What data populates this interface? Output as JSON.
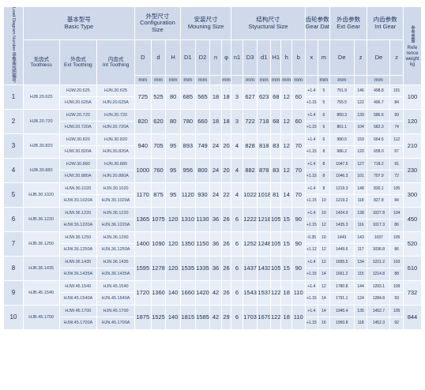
{
  "header": {
    "load_diagram": "Load Diagram Number 承载曲线图编号",
    "basic_type_cn": "基本型号",
    "basic_type_en": "Basic Type",
    "configuration_cn": "外型尺寸",
    "configuration_en": "Configuration Size",
    "mounting_cn": "安装尺寸",
    "mounting_en": "Mouning Size",
    "structural_cn": "结构尺寸",
    "structural_en": "Styuctural Size",
    "gear_data_cn": "齿轮参数",
    "gear_data_en": "Gear Data",
    "ext_gear_cn": "外齿参数",
    "ext_gear_en": "Ext Gear",
    "int_gear_cn": "内齿参数",
    "int_gear_en": "Int Gear",
    "weight_cn": "参考重量",
    "weight_en": "Refe rence weight kg",
    "no_tooth_cn": "无齿式",
    "no_tooth_en": "Toothless",
    "ext_tooth_cn": "外齿式",
    "ext_tooth_en": "Ext Toothing",
    "int_tooth_cn": "内齿式",
    "int_tooth_en": "Int Toothing",
    "cols": {
      "D": "D",
      "d": "d",
      "H": "H",
      "D1": "D1",
      "D2": "D2",
      "n": "n",
      "phi": "φ",
      "n1": "n1",
      "D3": "D3",
      "d1": "d1",
      "H1": "H1",
      "h": "h",
      "b": "b",
      "x": "x",
      "m": "m",
      "De": "De",
      "z": "z",
      "Di": "De",
      "zi": "z"
    },
    "unit": "mm"
  },
  "rows": [
    {
      "no": "1",
      "toothless": "HJB.20.625",
      "ext": [
        "HJW.20.625",
        "HJW.20.625A"
      ],
      "int": [
        "HJN.20.625",
        "HJN.20.625A"
      ],
      "D": "725",
      "d": "525",
      "H": "80",
      "D1": "685",
      "D2": "565",
      "n": "18",
      "phi": "18",
      "n1": "3",
      "D3": "627",
      "d1": "623",
      "H1": "68",
      "h": "12",
      "b": "60",
      "x": [
        "+1.4",
        "+1.15"
      ],
      "m": [
        "5",
        "5"
      ],
      "De": [
        "751.9",
        "755.5"
      ],
      "z": [
        "146",
        "122"
      ],
      "Di": [
        "498.8",
        "496.7"
      ],
      "zi": [
        "101",
        "84"
      ],
      "w": "100"
    },
    {
      "no": "2",
      "toothless": "HJB.20.720",
      "ext": [
        "HJW.20.720",
        "HJW.20.720A"
      ],
      "int": [
        "HJN.20.720",
        "HJN.20.720A"
      ],
      "D": "820",
      "d": "620",
      "H": "80",
      "D1": "780",
      "D2": "660",
      "n": "18",
      "phi": "18",
      "n1": "3",
      "D3": "722",
      "d1": "718",
      "H1": "68",
      "h": "12",
      "b": "60",
      "x": [
        "+1.4",
        "+1.15"
      ],
      "m": [
        "6",
        "6"
      ],
      "De": [
        "860.3",
        "861.1"
      ],
      "z": [
        "139",
        "104"
      ],
      "Di": [
        "586.6",
        "582.3"
      ],
      "zi": [
        "99",
        "74"
      ],
      "w": "120"
    },
    {
      "no": "3",
      "toothless": "HJB.30.820",
      "ext": [
        "HJW.30.820",
        "HJW.30.820A"
      ],
      "int": [
        "HJN.30.820",
        "HJN.30.820A"
      ],
      "D": "940",
      "d": "705",
      "H": "95",
      "D1": "893",
      "D2": "749",
      "n": "24",
      "phi": "20",
      "n1": "4",
      "D3": "828",
      "d1": "818",
      "H1": "83",
      "h": "12",
      "b": "70",
      "x": [
        "+1.4",
        "+1.15"
      ],
      "m": [
        "6",
        "8"
      ],
      "De": [
        "980.5",
        "986.2"
      ],
      "z": [
        "159",
        "120"
      ],
      "Di": [
        "664.5",
        "658.0"
      ],
      "zi": [
        "112",
        "67"
      ],
      "w": "210"
    },
    {
      "no": "4",
      "toothless": "HJB.30.880",
      "ext": [
        "HJW.30.880",
        "HJW.30.880A"
      ],
      "int": [
        "HJN.30.880",
        "HJN.30.880A"
      ],
      "D": "1000",
      "d": "760",
      "H": "95",
      "D1": "956",
      "D2": "800",
      "n": "24",
      "phi": "20",
      "n1": "4",
      "D3": "882",
      "d1": "878",
      "H1": "83",
      "h": "12",
      "b": "70",
      "x": [
        "+1.4",
        "+1.15"
      ],
      "m": [
        "8",
        "8"
      ],
      "De": [
        "1047.5",
        "1046.3"
      ],
      "z": [
        "127",
        "101"
      ],
      "Di": [
        "718.2",
        "707.9"
      ],
      "zi": [
        "91",
        "72"
      ],
      "w": "230"
    },
    {
      "no": "5",
      "toothless": "HJB.30.1020",
      "ext": [
        "HJW.30.1020",
        "HJW.30.1020A"
      ],
      "int": [
        "HJN.30.1020",
        "HJN.30.1020A"
      ],
      "D": "1170",
      "d": "875",
      "H": "95",
      "D1": "1120",
      "D2": "930",
      "n": "24",
      "phi": "22",
      "n1": "4",
      "D3": "1022",
      "d1": "1018",
      "H1": "81",
      "h": "14",
      "b": "70",
      "x": [
        "+1.4",
        "+1.15"
      ],
      "m": [
        "8",
        "10"
      ],
      "De": [
        "1219.3",
        "1219.2"
      ],
      "z": [
        "148",
        "118"
      ],
      "Di": [
        "830.1",
        "827.8"
      ],
      "zi": [
        "105",
        "84"
      ],
      "w": "300"
    },
    {
      "no": "6",
      "toothless": "HJB.36.1220",
      "ext": [
        "HJW.36.1220",
        "HJW.36.1220A"
      ],
      "int": [
        "HJN.36.1220",
        "HJN.36.1220A"
      ],
      "D": "1365",
      "d": "1075",
      "H": "120",
      "D1": "1310",
      "D2": "1130",
      "n": "36",
      "phi": "26",
      "n1": "6",
      "D3": "1222",
      "d1": "1218",
      "H1": "105",
      "h": "15",
      "b": "90",
      "x": [
        "+1.4",
        "+1.15"
      ],
      "m": [
        "10",
        "12"
      ],
      "De": [
        "1424.9",
        "1435.3"
      ],
      "z": [
        "138",
        "116"
      ],
      "Di": [
        "1027.8",
        "1017.3"
      ],
      "zi": [
        "104",
        "86"
      ],
      "w": "450"
    },
    {
      "no": "7",
      "toothless": "HJB.36.1250",
      "ext": [
        "HJW.36.1250",
        "HJW.36.1250A"
      ],
      "int": [
        "HJN.36.1250",
        "HJN.36.1250A"
      ],
      "D": "1400",
      "d": "1090",
      "H": "120",
      "D1": "1350",
      "D2": "1150",
      "n": "36",
      "phi": "26",
      "n1": "6",
      "D3": "1252",
      "d1": "1248",
      "H1": "105",
      "h": "15",
      "b": "90",
      "x": [
        "-0.35",
        "+1.12"
      ],
      "m": [
        "10",
        "12"
      ],
      "De": [
        "1443",
        "1449.6"
      ],
      "z": [
        "143",
        "117"
      ],
      "Di": [
        "1037",
        "1036.8"
      ],
      "zi": [
        "105",
        "86"
      ],
      "w": "520"
    },
    {
      "no": "8",
      "toothless": "HJB.36.1435",
      "ext": [
        "HJW.36.1435",
        "HJW.36.1435A"
      ],
      "int": [
        "HJN.36.1435",
        "HJN.36.1435A"
      ],
      "D": "1595",
      "d": "1278",
      "H": "120",
      "D1": "1535",
      "D2": "1335",
      "n": "36",
      "phi": "26",
      "n1": "6",
      "D3": "1437",
      "d1": "1433",
      "H1": "105",
      "h": "15",
      "b": "90",
      "x": [
        "+1.4",
        "+1.15"
      ],
      "m": [
        "12",
        "14"
      ],
      "De": [
        "1655.5",
        "1661.2"
      ],
      "z": [
        "134",
        "115"
      ],
      "Di": [
        "1221.2",
        "1214.8"
      ],
      "zi": [
        "103",
        "88"
      ],
      "w": "610"
    },
    {
      "no": "9",
      "toothless": "HJB.45.1540",
      "ext": [
        "HJW.45.1540",
        "HJW.45.1540A"
      ],
      "int": [
        "HJN.45.1540",
        "HJN.45.1540A"
      ],
      "D": "1720",
      "d": "1360",
      "H": "140",
      "D1": "1660",
      "D2": "1420",
      "n": "42",
      "phi": "26",
      "n1": "6",
      "D3": "1543",
      "d1": "1537",
      "H1": "122",
      "h": "18",
      "b": "110",
      "x": [
        "+1.4",
        "+1.15"
      ],
      "m": [
        "12",
        "14"
      ],
      "De": [
        "1780.8",
        "1791.1"
      ],
      "z": [
        "144",
        "124"
      ],
      "Di": [
        "1293.1",
        "1284.8"
      ],
      "zi": [
        "109",
        "93"
      ],
      "w": "732"
    },
    {
      "no": "10",
      "toothless": "HJB.45.1700",
      "ext": [
        "HJW.45.1700",
        "HJW.45.1700A"
      ],
      "int": [
        "HJN.45.1700",
        "HJN.45.1700A"
      ],
      "D": "1875",
      "d": "1525",
      "H": "140",
      "D1": "1815",
      "D2": "1585",
      "n": "42",
      "phi": "29",
      "n1": "6",
      "D3": "1703",
      "d1": "1679",
      "H1": "122",
      "h": "18",
      "b": "110",
      "x": [
        "+1.4",
        "+1.15"
      ],
      "m": [
        "14",
        "16"
      ],
      "De": [
        "1945.4",
        "1950.8"
      ],
      "z": [
        "135",
        "118"
      ],
      "Di": [
        "1452.7",
        "1452.3"
      ],
      "zi": [
        "105",
        "92"
      ],
      "w": "844"
    }
  ]
}
